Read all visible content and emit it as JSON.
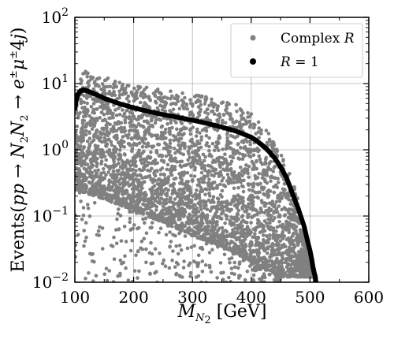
{
  "chart_data": {
    "type": "scatter",
    "title": "",
    "xlabel": "M_{N_2} [GeV]",
    "ylabel": "Events(pp → N_2N_2 → e^±μ^±4j)",
    "x_scale": "linear",
    "y_scale": "log",
    "xlim": [
      100,
      600
    ],
    "ylim": [
      0.01,
      100
    ],
    "x_ticks": [
      100,
      200,
      300,
      400,
      500,
      600
    ],
    "x_tick_labels": [
      "100",
      "200",
      "300",
      "400",
      "500",
      "600"
    ],
    "y_ticks": [
      0.01,
      0.1,
      1,
      10,
      100
    ],
    "y_tick_labels": [
      {
        "base": "10",
        "exp": "−2"
      },
      {
        "base": "10",
        "exp": "−1"
      },
      {
        "base": "10",
        "exp": "0"
      },
      {
        "base": "10",
        "exp": "1"
      },
      {
        "base": "10",
        "exp": "2"
      }
    ],
    "grid": true,
    "legend_position": "top-right",
    "legend": [
      "Complex R",
      "R = 1"
    ],
    "series": [
      {
        "name": "Complex R",
        "color": "#808080",
        "marker": "circle",
        "upper_envelope": {
          "x": [
            105,
            110,
            120,
            130,
            150,
            170,
            200,
            230,
            260,
            290,
            320,
            350,
            370,
            390,
            410,
            430,
            450,
            470,
            480,
            490,
            500,
            505,
            510
          ],
          "y": [
            9.5,
            13,
            16,
            15,
            13,
            11,
            9.5,
            8.5,
            7.8,
            7.2,
            6.5,
            5.6,
            5.0,
            4.2,
            2.9,
            1.8,
            0.9,
            0.35,
            0.18,
            0.07,
            0.025,
            0.015,
            0.01
          ]
        },
        "lower_envelope": {
          "x": [
            100,
            150,
            200,
            250,
            300,
            350,
            400,
            450
          ],
          "y": [
            0.25,
            0.18,
            0.12,
            0.08,
            0.05,
            0.035,
            0.02,
            0.012
          ]
        }
      },
      {
        "name": "R = 1",
        "color": "#000000",
        "marker": "circle",
        "x": [
          100,
          103,
          106,
          110,
          115,
          120,
          130,
          150,
          175,
          200,
          225,
          250,
          275,
          300,
          325,
          350,
          375,
          400,
          410,
          420,
          430,
          440,
          450,
          460,
          470,
          480,
          490,
          495,
          500,
          503,
          505,
          507,
          509,
          510
        ],
        "y": [
          4.2,
          6.0,
          7.0,
          7.8,
          8.0,
          7.8,
          7.2,
          6.0,
          5.0,
          4.3,
          3.8,
          3.4,
          3.1,
          2.8,
          2.5,
          2.2,
          1.9,
          1.55,
          1.35,
          1.15,
          0.95,
          0.75,
          0.55,
          0.38,
          0.22,
          0.13,
          0.07,
          0.045,
          0.03,
          0.022,
          0.017,
          0.014,
          0.012,
          0.01
        ]
      }
    ]
  }
}
